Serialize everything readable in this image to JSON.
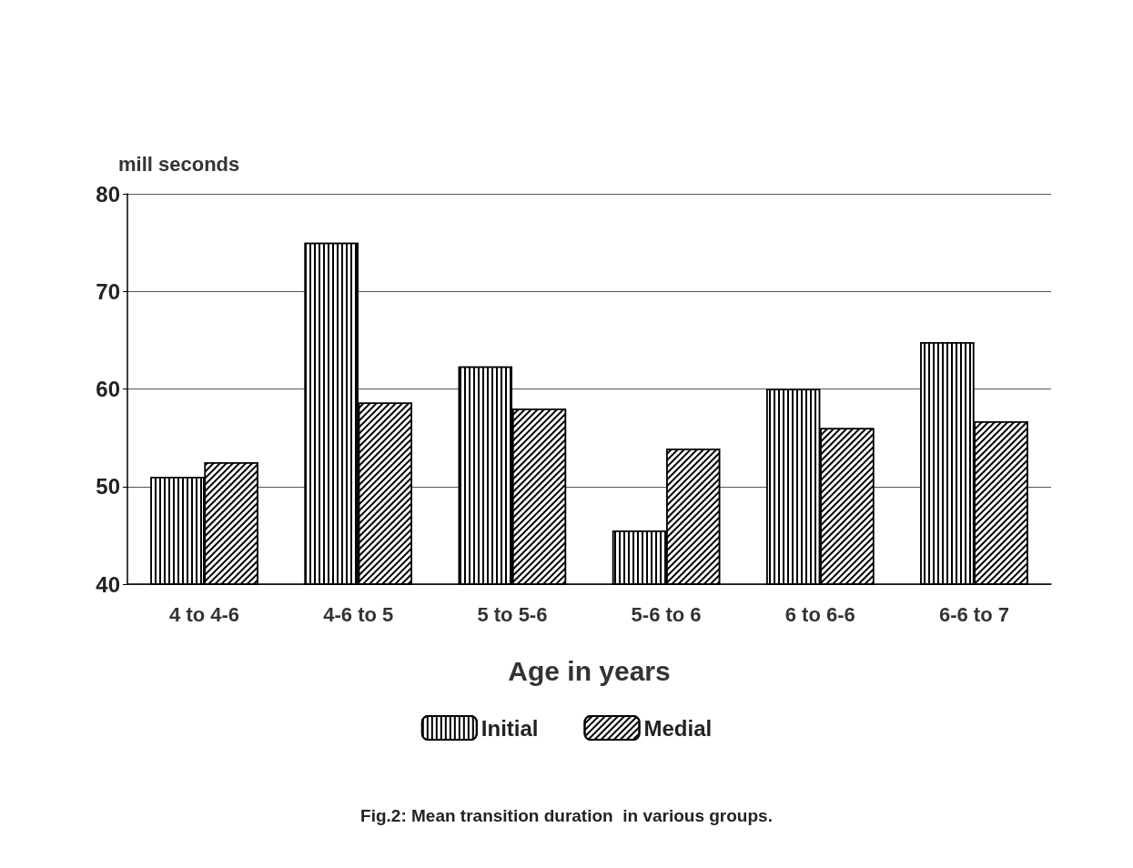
{
  "chart_data": {
    "type": "bar",
    "categories": [
      "4 to 4-6",
      "4-6 to 5",
      "5 to 5-6",
      "5-6 to 6",
      "6 to 6-6",
      "6-6 to 7"
    ],
    "series": [
      {
        "name": "Initial",
        "color": "#ffffff",
        "values": [
          51,
          75,
          62.3,
          45.5,
          60,
          64.8
        ]
      },
      {
        "name": "Medial",
        "color": "#ffffff",
        "values": [
          52.5,
          58.6,
          58,
          53.9,
          56,
          56.7
        ]
      }
    ],
    "xlabel": "Age in years",
    "ylabel": "mill seconds",
    "ylim": [
      40,
      80
    ],
    "yticks": [
      40,
      50,
      60,
      70,
      80
    ],
    "grid": "y",
    "legend": "bottom",
    "annotations": [
      "Fig.2: Mean transition duration  in various groups."
    ]
  }
}
